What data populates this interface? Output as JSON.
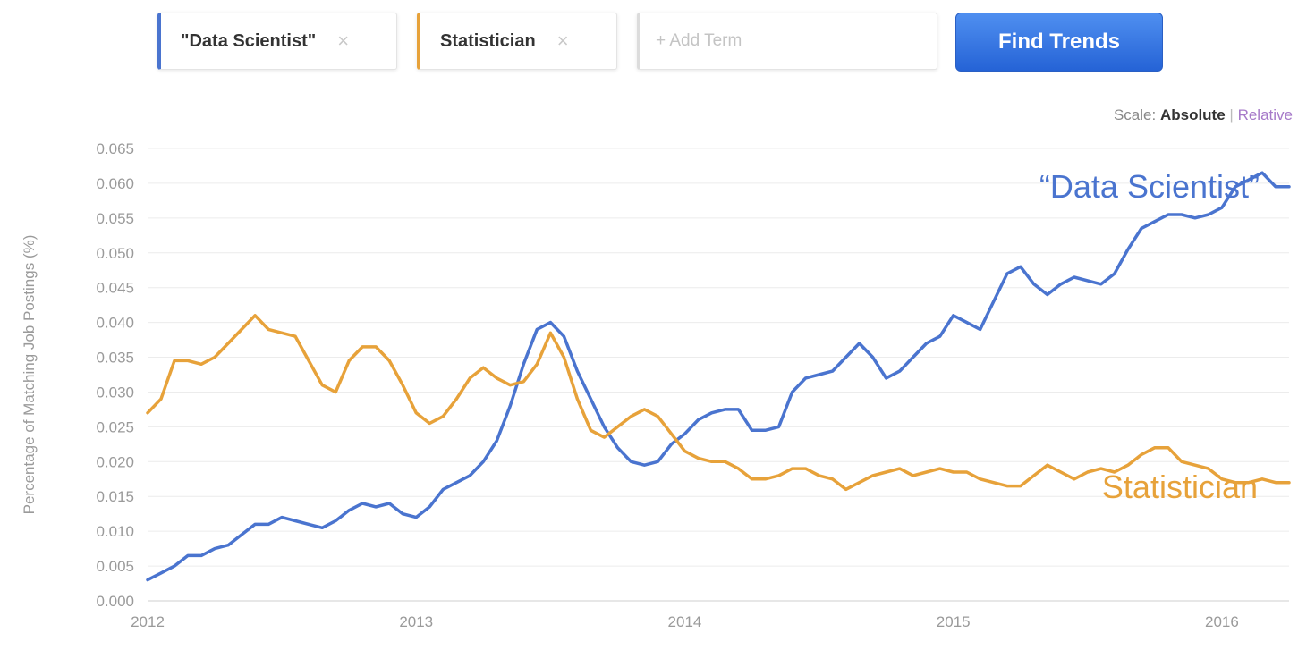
{
  "search": {
    "terms": [
      {
        "label": "\"Data Scientist\"",
        "remove": "×"
      },
      {
        "label": "Statistician",
        "remove": "×"
      }
    ],
    "add_placeholder": "+ Add Term",
    "find_button": "Find Trends"
  },
  "scale": {
    "prefix": "Scale:",
    "absolute": "Absolute",
    "separator": "|",
    "relative": "Relative"
  },
  "colors": {
    "data_scientist": "#4a74cf",
    "statistician": "#e7a23a",
    "button": "#3a7be6"
  },
  "chart_data": {
    "type": "line",
    "title": "",
    "ylabel": "Percentage of Matching Job Postings (%)",
    "xlabel": "",
    "xlim": [
      2012,
      2016.25
    ],
    "ylim": [
      0,
      0.065
    ],
    "x_ticks": [
      "2012",
      "2013",
      "2014",
      "2015",
      "2016"
    ],
    "y_ticks": [
      "0.000",
      "0.005",
      "0.010",
      "0.015",
      "0.020",
      "0.025",
      "0.030",
      "0.035",
      "0.040",
      "0.045",
      "0.050",
      "0.055",
      "0.060",
      "0.065"
    ],
    "grid": true,
    "annotations": [
      {
        "text": "“Data Scientist”",
        "series": "Data Scientist"
      },
      {
        "text": "Statistician",
        "series": "Statistician"
      }
    ],
    "series": [
      {
        "name": "\"Data Scientist\"",
        "color": "#4a74cf",
        "points": [
          [
            2012.0,
            0.003
          ],
          [
            2012.05,
            0.004
          ],
          [
            2012.1,
            0.005
          ],
          [
            2012.15,
            0.0065
          ],
          [
            2012.2,
            0.0065
          ],
          [
            2012.25,
            0.0075
          ],
          [
            2012.3,
            0.008
          ],
          [
            2012.35,
            0.0095
          ],
          [
            2012.4,
            0.011
          ],
          [
            2012.45,
            0.011
          ],
          [
            2012.5,
            0.012
          ],
          [
            2012.55,
            0.0115
          ],
          [
            2012.6,
            0.011
          ],
          [
            2012.65,
            0.0105
          ],
          [
            2012.7,
            0.0115
          ],
          [
            2012.75,
            0.013
          ],
          [
            2012.8,
            0.014
          ],
          [
            2012.85,
            0.0135
          ],
          [
            2012.9,
            0.014
          ],
          [
            2012.95,
            0.0125
          ],
          [
            2013.0,
            0.012
          ],
          [
            2013.05,
            0.0135
          ],
          [
            2013.1,
            0.016
          ],
          [
            2013.15,
            0.017
          ],
          [
            2013.2,
            0.018
          ],
          [
            2013.25,
            0.02
          ],
          [
            2013.3,
            0.023
          ],
          [
            2013.35,
            0.028
          ],
          [
            2013.4,
            0.034
          ],
          [
            2013.45,
            0.039
          ],
          [
            2013.5,
            0.04
          ],
          [
            2013.55,
            0.038
          ],
          [
            2013.6,
            0.033
          ],
          [
            2013.65,
            0.029
          ],
          [
            2013.7,
            0.025
          ],
          [
            2013.75,
            0.022
          ],
          [
            2013.8,
            0.02
          ],
          [
            2013.85,
            0.0195
          ],
          [
            2013.9,
            0.02
          ],
          [
            2013.95,
            0.0225
          ],
          [
            2014.0,
            0.024
          ],
          [
            2014.05,
            0.026
          ],
          [
            2014.1,
            0.027
          ],
          [
            2014.15,
            0.0275
          ],
          [
            2014.2,
            0.0275
          ],
          [
            2014.25,
            0.0245
          ],
          [
            2014.3,
            0.0245
          ],
          [
            2014.35,
            0.025
          ],
          [
            2014.4,
            0.03
          ],
          [
            2014.45,
            0.032
          ],
          [
            2014.5,
            0.0325
          ],
          [
            2014.55,
            0.033
          ],
          [
            2014.6,
            0.035
          ],
          [
            2014.65,
            0.037
          ],
          [
            2014.7,
            0.035
          ],
          [
            2014.75,
            0.032
          ],
          [
            2014.8,
            0.033
          ],
          [
            2014.85,
            0.035
          ],
          [
            2014.9,
            0.037
          ],
          [
            2014.95,
            0.038
          ],
          [
            2015.0,
            0.041
          ],
          [
            2015.05,
            0.04
          ],
          [
            2015.1,
            0.039
          ],
          [
            2015.15,
            0.043
          ],
          [
            2015.2,
            0.047
          ],
          [
            2015.25,
            0.048
          ],
          [
            2015.3,
            0.0455
          ],
          [
            2015.35,
            0.044
          ],
          [
            2015.4,
            0.0455
          ],
          [
            2015.45,
            0.0465
          ],
          [
            2015.5,
            0.046
          ],
          [
            2015.55,
            0.0455
          ],
          [
            2015.6,
            0.047
          ],
          [
            2015.65,
            0.0505
          ],
          [
            2015.7,
            0.0535
          ],
          [
            2015.75,
            0.0545
          ],
          [
            2015.8,
            0.0555
          ],
          [
            2015.85,
            0.0555
          ],
          [
            2015.9,
            0.055
          ],
          [
            2015.95,
            0.0555
          ],
          [
            2016.0,
            0.0565
          ],
          [
            2016.05,
            0.0595
          ],
          [
            2016.1,
            0.0605
          ],
          [
            2016.15,
            0.0615
          ],
          [
            2016.2,
            0.0595
          ],
          [
            2016.25,
            0.0595
          ]
        ]
      },
      {
        "name": "Statistician",
        "color": "#e7a23a",
        "points": [
          [
            2012.0,
            0.027
          ],
          [
            2012.05,
            0.029
          ],
          [
            2012.1,
            0.0345
          ],
          [
            2012.15,
            0.0345
          ],
          [
            2012.2,
            0.034
          ],
          [
            2012.25,
            0.035
          ],
          [
            2012.3,
            0.037
          ],
          [
            2012.35,
            0.039
          ],
          [
            2012.4,
            0.041
          ],
          [
            2012.45,
            0.039
          ],
          [
            2012.5,
            0.0385
          ],
          [
            2012.55,
            0.038
          ],
          [
            2012.6,
            0.0345
          ],
          [
            2012.65,
            0.031
          ],
          [
            2012.7,
            0.03
          ],
          [
            2012.75,
            0.0345
          ],
          [
            2012.8,
            0.0365
          ],
          [
            2012.85,
            0.0365
          ],
          [
            2012.9,
            0.0345
          ],
          [
            2012.95,
            0.031
          ],
          [
            2013.0,
            0.027
          ],
          [
            2013.05,
            0.0255
          ],
          [
            2013.1,
            0.0265
          ],
          [
            2013.15,
            0.029
          ],
          [
            2013.2,
            0.032
          ],
          [
            2013.25,
            0.0335
          ],
          [
            2013.3,
            0.032
          ],
          [
            2013.35,
            0.031
          ],
          [
            2013.4,
            0.0315
          ],
          [
            2013.45,
            0.034
          ],
          [
            2013.5,
            0.0385
          ],
          [
            2013.55,
            0.035
          ],
          [
            2013.6,
            0.029
          ],
          [
            2013.65,
            0.0245
          ],
          [
            2013.7,
            0.0235
          ],
          [
            2013.75,
            0.025
          ],
          [
            2013.8,
            0.0265
          ],
          [
            2013.85,
            0.0275
          ],
          [
            2013.9,
            0.0265
          ],
          [
            2013.95,
            0.024
          ],
          [
            2014.0,
            0.0215
          ],
          [
            2014.05,
            0.0205
          ],
          [
            2014.1,
            0.02
          ],
          [
            2014.15,
            0.02
          ],
          [
            2014.2,
            0.019
          ],
          [
            2014.25,
            0.0175
          ],
          [
            2014.3,
            0.0175
          ],
          [
            2014.35,
            0.018
          ],
          [
            2014.4,
            0.019
          ],
          [
            2014.45,
            0.019
          ],
          [
            2014.5,
            0.018
          ],
          [
            2014.55,
            0.0175
          ],
          [
            2014.6,
            0.016
          ],
          [
            2014.65,
            0.017
          ],
          [
            2014.7,
            0.018
          ],
          [
            2014.75,
            0.0185
          ],
          [
            2014.8,
            0.019
          ],
          [
            2014.85,
            0.018
          ],
          [
            2014.9,
            0.0185
          ],
          [
            2014.95,
            0.019
          ],
          [
            2015.0,
            0.0185
          ],
          [
            2015.05,
            0.0185
          ],
          [
            2015.1,
            0.0175
          ],
          [
            2015.15,
            0.017
          ],
          [
            2015.2,
            0.0165
          ],
          [
            2015.25,
            0.0165
          ],
          [
            2015.3,
            0.018
          ],
          [
            2015.35,
            0.0195
          ],
          [
            2015.4,
            0.0185
          ],
          [
            2015.45,
            0.0175
          ],
          [
            2015.5,
            0.0185
          ],
          [
            2015.55,
            0.019
          ],
          [
            2015.6,
            0.0185
          ],
          [
            2015.65,
            0.0195
          ],
          [
            2015.7,
            0.021
          ],
          [
            2015.75,
            0.022
          ],
          [
            2015.8,
            0.022
          ],
          [
            2015.85,
            0.02
          ],
          [
            2015.9,
            0.0195
          ],
          [
            2015.95,
            0.019
          ],
          [
            2016.0,
            0.0175
          ],
          [
            2016.05,
            0.017
          ],
          [
            2016.1,
            0.017
          ],
          [
            2016.15,
            0.0175
          ],
          [
            2016.2,
            0.017
          ],
          [
            2016.25,
            0.017
          ]
        ]
      }
    ]
  }
}
